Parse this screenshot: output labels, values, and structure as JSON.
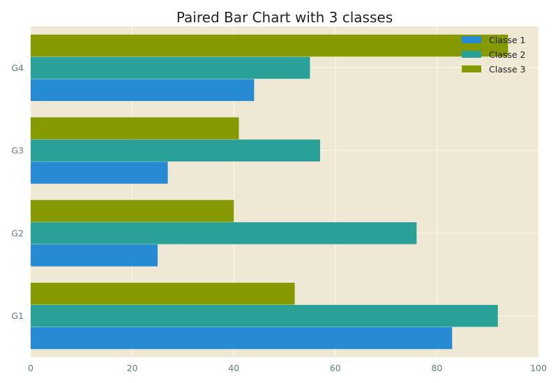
{
  "chart_data": {
    "type": "bar",
    "orientation": "horizontal",
    "title": "Paired Bar Chart with 3 classes",
    "xlabel": "",
    "ylabel": "",
    "categories": [
      "G1",
      "G2",
      "G3",
      "G4"
    ],
    "series": [
      {
        "name": "Classe 1",
        "values": [
          83,
          25,
          27,
          44
        ],
        "color": "#268bd2"
      },
      {
        "name": "Classe 2",
        "values": [
          92,
          76,
          57,
          55
        ],
        "color": "#2aa198"
      },
      {
        "name": "Classe 3",
        "values": [
          52,
          40,
          41,
          94
        ],
        "color": "#859900"
      }
    ],
    "xlim": [
      0,
      100
    ],
    "xticks": [
      0,
      20,
      40,
      60,
      80,
      100
    ],
    "grid": true,
    "legend_position": "top-right",
    "background_color": "#eee8d5",
    "grid_color": "#fdf6e3"
  }
}
